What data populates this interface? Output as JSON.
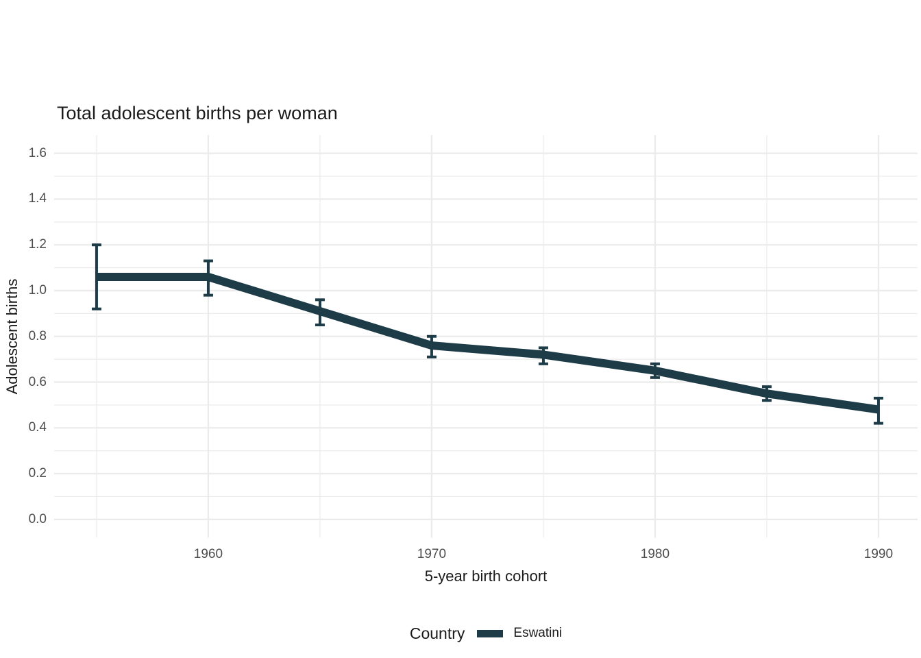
{
  "title": "Total adolescent births per woman",
  "axes": {
    "x_label": "5-year birth cohort",
    "y_label": "Adolescent births"
  },
  "legend": {
    "title": "Country",
    "entries": [
      {
        "label": "Eswatini",
        "color": "#1d3c47"
      }
    ]
  },
  "chart_data": {
    "type": "line",
    "title": "Total adolescent births per woman",
    "xlabel": "5-year birth cohort",
    "ylabel": "Adolescent births",
    "x": [
      1955,
      1960,
      1965,
      1970,
      1975,
      1980,
      1985,
      1990
    ],
    "series": [
      {
        "name": "Eswatini",
        "values": [
          1.06,
          1.06,
          0.91,
          0.76,
          0.72,
          0.65,
          0.55,
          0.48
        ],
        "ci_low": [
          0.92,
          0.98,
          0.85,
          0.71,
          0.68,
          0.62,
          0.52,
          0.42
        ],
        "ci_high": [
          1.2,
          1.13,
          0.96,
          0.8,
          0.75,
          0.68,
          0.58,
          0.53
        ],
        "color": "#1d3c47"
      }
    ],
    "xlim": [
      1953.1,
      1991.75
    ],
    "ylim": [
      -0.08,
      1.68
    ],
    "x_major_ticks": [
      1960,
      1970,
      1980,
      1990
    ],
    "x_tick_labels": [
      "1960",
      "1970",
      "1980",
      "1990"
    ],
    "x_minor_ticks": [
      1955,
      1965,
      1975,
      1985
    ],
    "y_major_ticks": [
      0.0,
      0.2,
      0.4,
      0.6,
      0.8,
      1.0,
      1.2,
      1.4,
      1.6
    ],
    "y_tick_labels": [
      "0.0",
      "0.2",
      "0.4",
      "0.6",
      "0.8",
      "1.0",
      "1.2",
      "1.4",
      "1.6"
    ],
    "y_minor_ticks": [
      0.1,
      0.3,
      0.5,
      0.7,
      0.9,
      1.1,
      1.3,
      1.5
    ],
    "grid": true,
    "legend_position": "bottom",
    "colors": {
      "grid": "#ebebeb",
      "tick_label": "#4d4d4d",
      "text": "#1a1a1a",
      "background": "#ffffff"
    }
  }
}
